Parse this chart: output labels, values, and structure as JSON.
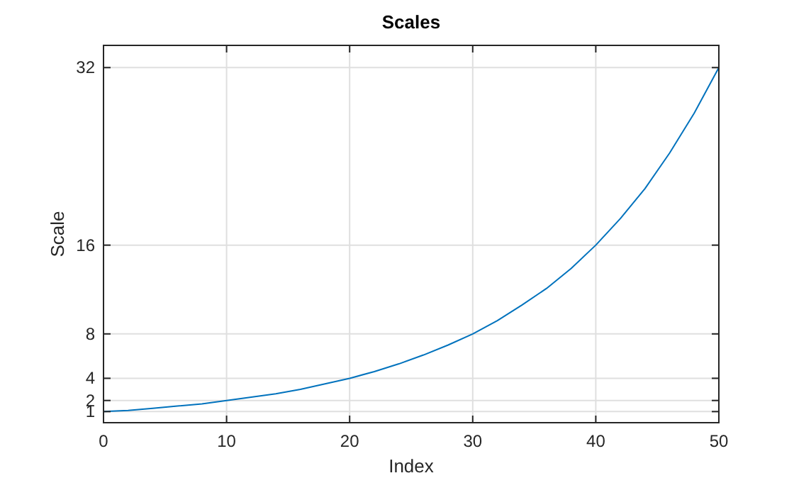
{
  "chart_data": {
    "type": "line",
    "title": "Scales",
    "xlabel": "Index",
    "ylabel": "Scale",
    "x": [
      0,
      2,
      4,
      6,
      8,
      10,
      12,
      14,
      16,
      18,
      20,
      22,
      24,
      26,
      28,
      30,
      32,
      34,
      36,
      38,
      40,
      42,
      44,
      46,
      48,
      50
    ],
    "series": [
      {
        "color": "#0072bd",
        "values": [
          1,
          1.1,
          1.3,
          1.5,
          1.7,
          2,
          2.3,
          2.6,
          3,
          3.5,
          4,
          4.6,
          5.3,
          6.1,
          7,
          8,
          9.2,
          10.6,
          12.1,
          13.9,
          16,
          18.4,
          21.1,
          24.3,
          27.9,
          32
        ]
      }
    ],
    "xlim": [
      0,
      50
    ],
    "xticks": [
      0,
      10,
      20,
      30,
      40,
      50
    ],
    "ylim": [
      0,
      34
    ],
    "yticks": [
      1,
      2,
      4,
      8,
      16,
      32
    ],
    "grid": true,
    "marker": "none",
    "line_style": "solid"
  }
}
